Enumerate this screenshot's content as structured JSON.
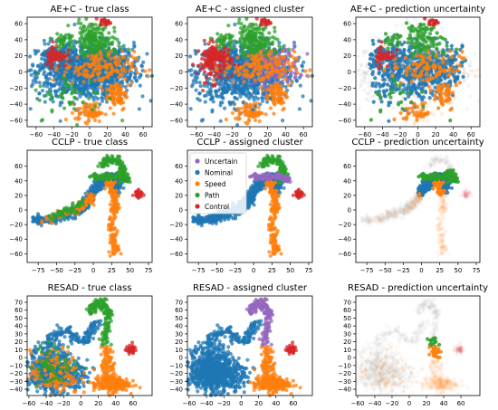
{
  "colors": {
    "Uncertain": "#9467bd",
    "Nominal": "#1f77b4",
    "Speed": "#ff7f0e",
    "Path": "#2ca02c",
    "Control": "#d62728",
    "Certain": "#b8b8b8"
  },
  "chart_data": [
    {
      "type": "scatter",
      "title": "AE+C - true class",
      "coloring": "true_class",
      "shape": "aec",
      "xlim": [
        -70,
        70
      ],
      "ylim": [
        -68,
        68
      ],
      "xticks": [
        -60,
        -40,
        -20,
        0,
        20,
        40,
        60
      ],
      "yticks": [
        -60,
        -40,
        -20,
        0,
        20,
        40,
        60
      ]
    },
    {
      "type": "scatter",
      "title": "AE+C - assigned cluster",
      "coloring": "assigned_cluster",
      "shape": "aec",
      "xlim": [
        -70,
        70
      ],
      "ylim": [
        -68,
        68
      ],
      "xticks": [
        -60,
        -40,
        -20,
        0,
        20,
        40,
        60
      ],
      "yticks": [
        -60,
        -40,
        -20,
        0,
        20,
        40,
        60
      ]
    },
    {
      "type": "scatter",
      "title": "AE+C - prediction uncertainty",
      "coloring": "uncertainty",
      "shape": "aec",
      "xlim": [
        -70,
        70
      ],
      "ylim": [
        -68,
        68
      ],
      "xticks": [
        -60,
        -40,
        -20,
        0,
        20,
        40,
        60
      ],
      "yticks": [
        -60,
        -40,
        -20,
        0,
        20,
        40,
        60
      ]
    },
    {
      "type": "scatter",
      "title": "CCLP - true class",
      "coloring": "true_class",
      "shape": "cclp",
      "xlim": [
        -90,
        80
      ],
      "ylim": [
        -72,
        82
      ],
      "xticks": [
        -75,
        -50,
        -25,
        0,
        25,
        50,
        75
      ],
      "yticks": [
        -60,
        -40,
        -20,
        0,
        20,
        40,
        60
      ]
    },
    {
      "type": "scatter",
      "title": "CCLP - assigned cluster",
      "coloring": "assigned_cluster",
      "shape": "cclp",
      "xlim": [
        -90,
        80
      ],
      "ylim": [
        -72,
        82
      ],
      "xticks": [
        -75,
        -50,
        -25,
        0,
        25,
        50,
        75
      ],
      "yticks": [
        -60,
        -40,
        -20,
        0,
        20,
        40,
        60
      ],
      "legend": {
        "placement": "upper-left",
        "entries": [
          "Uncertain",
          "Nominal",
          "Speed",
          "Path",
          "Control"
        ]
      }
    },
    {
      "type": "scatter",
      "title": "CCLP - prediction uncertainty",
      "coloring": "uncertainty",
      "shape": "cclp",
      "xlim": [
        -90,
        80
      ],
      "ylim": [
        -72,
        82
      ],
      "xticks": [
        -75,
        -50,
        -25,
        0,
        25,
        50,
        75
      ],
      "yticks": [
        -60,
        -40,
        -20,
        0,
        20,
        40,
        60
      ]
    },
    {
      "type": "scatter",
      "title": "RESAD - true class",
      "coloring": "true_class",
      "shape": "resad",
      "xlim": [
        -62,
        82
      ],
      "ylim": [
        -48,
        78
      ],
      "xticks": [
        -60,
        -40,
        -20,
        0,
        20,
        40,
        60
      ],
      "yticks": [
        -40,
        -30,
        -20,
        -10,
        0,
        10,
        20,
        30,
        40,
        50,
        60,
        70
      ]
    },
    {
      "type": "scatter",
      "title": "RESAD - assigned cluster",
      "coloring": "assigned_cluster",
      "shape": "resad",
      "xlim": [
        -62,
        82
      ],
      "ylim": [
        -48,
        78
      ],
      "xticks": [
        -60,
        -40,
        -20,
        0,
        20,
        40,
        60
      ],
      "yticks": [
        -40,
        -30,
        -20,
        -10,
        0,
        10,
        20,
        30,
        40,
        50,
        60,
        70
      ]
    },
    {
      "type": "scatter",
      "title": "RESAD - prediction uncertainty",
      "coloring": "uncertainty",
      "shape": "resad",
      "xlim": [
        -62,
        82
      ],
      "ylim": [
        -48,
        78
      ],
      "xticks": [
        -60,
        -40,
        -20,
        0,
        20,
        40,
        60
      ],
      "yticks": [
        -40,
        -30,
        -20,
        -10,
        0,
        10,
        20,
        30,
        40,
        50,
        60,
        70
      ]
    }
  ]
}
